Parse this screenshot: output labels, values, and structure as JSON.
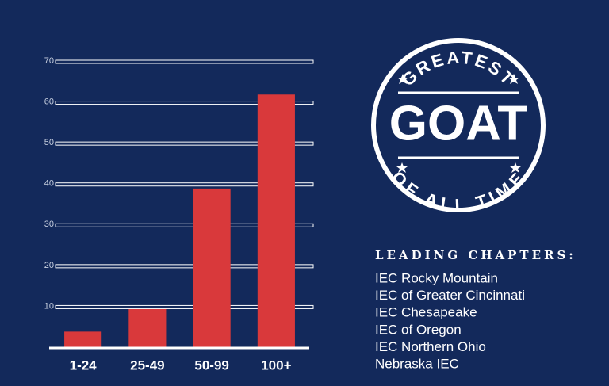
{
  "chart_data": {
    "type": "bar",
    "categories": [
      "1-24",
      "25-49",
      "50-99",
      "100+"
    ],
    "values": [
      4,
      9.5,
      39,
      62
    ],
    "color": "#d9393b",
    "ylim": [
      0,
      70
    ],
    "yticks": [
      10,
      20,
      30,
      40,
      50,
      60,
      70
    ],
    "grid": true
  },
  "badge": {
    "top": "GREATEST",
    "main": "GOAT",
    "bottom": "OF ALL TIME"
  },
  "chapters": {
    "title": "LEADING CHAPTERS:",
    "items": [
      "IEC Rocky Mountain",
      "IEC of Greater Cincinnati",
      "IEC Chesapeake",
      "IEC of Oregon",
      "IEC Northern Ohio",
      "Nebraska IEC"
    ]
  }
}
